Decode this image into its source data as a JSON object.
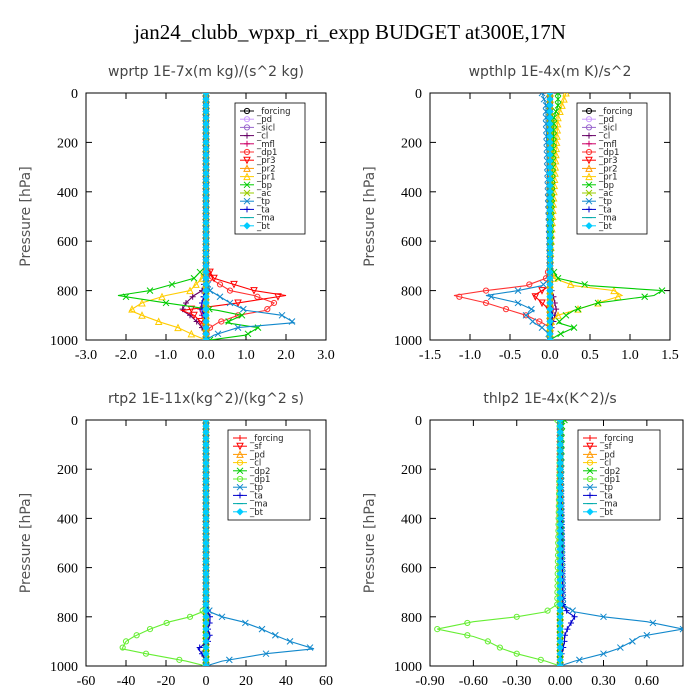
{
  "title": "jan24_clubb_wpxp_ri_expp  BUDGET at300E,17N",
  "chart_data": [
    {
      "type": "line",
      "title": "wprtp  1E-7x(m kg)/(s^2 kg)",
      "ylabel": "Pressure [hPa]",
      "xlim": [
        -3.0,
        3.0
      ],
      "ylim": [
        1000,
        0
      ],
      "xticks": [
        "-3.0",
        "-2.0",
        "-1.0",
        "0.0",
        "1.0",
        "2.0",
        "3.0"
      ],
      "xtick_values": [
        -3,
        -2,
        -1,
        0,
        1,
        2,
        3
      ],
      "yticks": [
        0,
        200,
        400,
        600,
        800,
        1000
      ],
      "legend_position": "top-right",
      "y": [
        700,
        750,
        800,
        820,
        850,
        880,
        900,
        930,
        950,
        980,
        1000
      ],
      "series": [
        {
          "name": "_forcing",
          "color": "#000000",
          "marker": "o",
          "values": [
            0,
            0,
            0,
            0,
            0,
            0,
            0,
            0,
            0,
            0,
            0
          ]
        },
        {
          "name": "_pd",
          "color": "#cc99ff",
          "marker": "o",
          "values": [
            0,
            0,
            0,
            0,
            0,
            0,
            0,
            0,
            0,
            0,
            0
          ]
        },
        {
          "name": "_sicl",
          "color": "#9966cc",
          "marker": "o",
          "values": [
            0,
            0,
            0,
            0,
            0,
            0,
            0,
            0,
            0,
            0,
            0
          ]
        },
        {
          "name": "_cl",
          "color": "#660066",
          "marker": "+",
          "values": [
            0,
            0,
            -0.1,
            -0.3,
            -0.5,
            -0.6,
            -0.4,
            -0.2,
            -0.1,
            0,
            0
          ]
        },
        {
          "name": "_mfl",
          "color": "#cc0066",
          "marker": "+",
          "values": [
            0,
            0,
            0,
            -0.05,
            -0.1,
            -0.15,
            -0.1,
            -0.05,
            0,
            0,
            0
          ]
        },
        {
          "name": "_dp1",
          "color": "#ff3333",
          "marker": "o",
          "values": [
            0,
            0.1,
            0.6,
            1.2,
            1.7,
            1.5,
            0.8,
            0.3,
            0.1,
            0,
            0
          ]
        },
        {
          "name": "_pr3",
          "color": "#ff0000",
          "marker": "v",
          "values": [
            0,
            0.2,
            1.2,
            2.0,
            0.8,
            -0.6,
            -0.3,
            -0.1,
            0,
            0,
            0
          ]
        },
        {
          "name": "_pr2",
          "color": "#ff9900",
          "marker": "^",
          "values": [
            0,
            0,
            0,
            0,
            0,
            0,
            0,
            0,
            0,
            0,
            0
          ]
        },
        {
          "name": "_pr1",
          "color": "#ffcc00",
          "marker": "^",
          "values": [
            0,
            -0.1,
            -0.4,
            -1.0,
            -1.6,
            -1.9,
            -1.6,
            -1.1,
            -0.7,
            -0.3,
            0
          ]
        },
        {
          "name": "_bp",
          "color": "#00cc00",
          "marker": "x",
          "values": [
            0,
            -0.3,
            -1.4,
            -2.2,
            -1.0,
            0.3,
            0.9,
            0.5,
            1.3,
            1.0,
            0.1
          ]
        },
        {
          "name": "_ac",
          "color": "#99cc00",
          "marker": "x",
          "values": [
            0,
            0,
            0,
            0,
            0,
            0,
            0,
            0,
            0,
            0,
            0
          ]
        },
        {
          "name": "_tp",
          "color": "#1188cc",
          "marker": "x",
          "values": [
            0,
            0,
            0.1,
            0.3,
            0.6,
            1.0,
            1.9,
            2.2,
            0.8,
            0.2,
            0
          ]
        },
        {
          "name": "_ta",
          "color": "#0000cc",
          "marker": "+",
          "values": [
            0,
            0,
            0,
            -0.05,
            -0.1,
            -0.1,
            -0.05,
            0,
            0,
            0,
            0
          ]
        },
        {
          "name": "_ma",
          "color": "#00aaaa",
          "marker": "-",
          "values": [
            0,
            0,
            0,
            0,
            0,
            0,
            0,
            0,
            0,
            0,
            0
          ]
        },
        {
          "name": "_bt",
          "color": "#00ccff",
          "marker": "D",
          "values": [
            0,
            0,
            0,
            0,
            0,
            0,
            0,
            0,
            0,
            0,
            0
          ]
        }
      ]
    },
    {
      "type": "line",
      "title": "wpthlp  1E-4x(m K)/s^2",
      "ylabel": "Pressure [hPa]",
      "xlim": [
        -1.5,
        1.5
      ],
      "ylim": [
        1000,
        0
      ],
      "xticks": [
        "-1.5",
        "-1.0",
        "-0.5",
        "0.0",
        "0.5",
        "1.0",
        "1.5"
      ],
      "xtick_values": [
        -1.5,
        -1,
        -0.5,
        0,
        0.5,
        1,
        1.5
      ],
      "yticks": [
        0,
        200,
        400,
        600,
        800,
        1000
      ],
      "legend_position": "top-right",
      "y": [
        0,
        50,
        100,
        700,
        750,
        780,
        800,
        820,
        850,
        880,
        900,
        930,
        950,
        980,
        1000
      ],
      "series": [
        {
          "name": "_forcing",
          "color": "#000000",
          "marker": "o",
          "values": [
            0,
            0,
            0,
            0,
            0,
            0,
            0,
            0,
            0,
            0,
            0,
            0,
            0,
            0,
            0
          ]
        },
        {
          "name": "_pd",
          "color": "#cc99ff",
          "marker": "o",
          "values": [
            0,
            0,
            0,
            0,
            0,
            0,
            0,
            0,
            0,
            0,
            0,
            0,
            0,
            0,
            0
          ]
        },
        {
          "name": "_sicl",
          "color": "#9966cc",
          "marker": "o",
          "values": [
            0,
            0,
            0,
            0,
            0,
            0,
            0,
            0,
            0,
            0,
            0,
            0,
            0,
            0,
            0
          ]
        },
        {
          "name": "_cl",
          "color": "#660066",
          "marker": "+",
          "values": [
            0,
            0,
            0,
            0,
            0,
            0,
            0.02,
            0.04,
            0.06,
            0.08,
            0.06,
            0.04,
            0.02,
            0,
            0
          ]
        },
        {
          "name": "_mfl",
          "color": "#cc0066",
          "marker": "+",
          "values": [
            0,
            0,
            0,
            0,
            0,
            0,
            0,
            0.02,
            0.03,
            0.04,
            0.03,
            0.02,
            0,
            0,
            0
          ]
        },
        {
          "name": "_dp1",
          "color": "#ff3333",
          "marker": "o",
          "values": [
            0,
            0,
            0,
            0,
            -0.05,
            -0.3,
            -0.8,
            -1.2,
            -0.8,
            -0.5,
            -0.3,
            -0.1,
            0,
            0,
            0
          ]
        },
        {
          "name": "_pr3",
          "color": "#ff0000",
          "marker": "v",
          "values": [
            0,
            0,
            0,
            0,
            0,
            0,
            -0.1,
            -0.2,
            -0.1,
            0,
            0,
            0,
            0,
            0,
            0
          ]
        },
        {
          "name": "_pr2",
          "color": "#ff9900",
          "marker": "^",
          "values": [
            0,
            0,
            0,
            0,
            0,
            0,
            0,
            0,
            0,
            0,
            0,
            0,
            0,
            0,
            0
          ]
        },
        {
          "name": "_pr1",
          "color": "#ffcc00",
          "marker": "^",
          "values": [
            0.2,
            0.15,
            0.1,
            0,
            0.05,
            0.3,
            0.8,
            0.9,
            0.6,
            0.3,
            0.1,
            0,
            0,
            0,
            0
          ]
        },
        {
          "name": "_bp",
          "color": "#00cc00",
          "marker": "x",
          "values": [
            0.1,
            0.1,
            0.05,
            0,
            0.1,
            0.5,
            1.4,
            1.3,
            0.6,
            0.3,
            0.2,
            0.1,
            0.3,
            0.1,
            0
          ]
        },
        {
          "name": "_ac",
          "color": "#99cc00",
          "marker": "x",
          "values": [
            0,
            0,
            0,
            0,
            0,
            0,
            0,
            0,
            0,
            0,
            0,
            0,
            0,
            0,
            0
          ]
        },
        {
          "name": "_tp",
          "color": "#1188cc",
          "marker": "x",
          "values": [
            -0.1,
            -0.05,
            -0.05,
            0,
            0,
            -0.1,
            -0.4,
            -0.8,
            -0.4,
            -0.2,
            -0.3,
            -0.2,
            -0.1,
            0,
            0
          ]
        },
        {
          "name": "_ta",
          "color": "#0000cc",
          "marker": "+",
          "values": [
            0,
            0,
            0,
            0,
            0,
            0,
            0,
            0,
            0,
            0.02,
            0.03,
            0.02,
            0.01,
            0,
            0
          ]
        },
        {
          "name": "_ma",
          "color": "#00aaaa",
          "marker": "-",
          "values": [
            0,
            0,
            0,
            0,
            0,
            0,
            0,
            0,
            0,
            0,
            0,
            0,
            0,
            0,
            0
          ]
        },
        {
          "name": "_bt",
          "color": "#00ccff",
          "marker": "D",
          "values": [
            0,
            0,
            0,
            0,
            0,
            0,
            0,
            0,
            0,
            0,
            0,
            0,
            0,
            0,
            0
          ]
        }
      ]
    },
    {
      "type": "line",
      "title": "rtp2  1E-11x(kg^2)/(kg^2 s)",
      "ylabel": "Pressure [hPa]",
      "xlim": [
        -60,
        60
      ],
      "ylim": [
        1000,
        0
      ],
      "xticks": [
        "-60",
        "-40",
        "-20",
        "0",
        "20",
        "40",
        "60"
      ],
      "xtick_values": [
        -60,
        -40,
        -20,
        0,
        20,
        40,
        60
      ],
      "yticks": [
        0,
        200,
        400,
        600,
        800,
        1000
      ],
      "legend_position": "top-right",
      "y": [
        750,
        780,
        800,
        820,
        850,
        880,
        900,
        930,
        950,
        980,
        1000
      ],
      "series": [
        {
          "name": "_forcing",
          "color": "#ff0000",
          "marker": "+",
          "values": [
            0,
            0,
            0,
            0,
            0,
            0,
            0,
            0,
            0,
            0,
            0
          ]
        },
        {
          "name": "_sf",
          "color": "#ff0000",
          "marker": "v",
          "values": [
            0,
            0,
            0,
            0,
            0,
            0,
            0,
            0,
            0,
            0,
            0
          ]
        },
        {
          "name": "_pd",
          "color": "#ff9900",
          "marker": "^",
          "values": [
            0,
            0,
            0,
            0,
            0,
            0,
            0,
            0,
            0,
            0,
            0
          ]
        },
        {
          "name": "_cl",
          "color": "#ffcc00",
          "marker": "o",
          "values": [
            0,
            0,
            0,
            0,
            0,
            0,
            0,
            0,
            0,
            0,
            0
          ]
        },
        {
          "name": "_dp2",
          "color": "#00cc00",
          "marker": "x",
          "values": [
            0,
            0,
            0,
            0,
            0,
            0,
            0,
            0,
            0,
            0,
            0
          ]
        },
        {
          "name": "_dp1",
          "color": "#66ee33",
          "marker": "o",
          "values": [
            0,
            -2,
            -8,
            -18,
            -28,
            -36,
            -40,
            -42,
            -30,
            -10,
            0
          ]
        },
        {
          "name": "_tp",
          "color": "#1188cc",
          "marker": "x",
          "values": [
            0,
            2,
            8,
            18,
            28,
            36,
            42,
            54,
            30,
            8,
            0
          ]
        },
        {
          "name": "_ta",
          "color": "#0000cc",
          "marker": "+",
          "values": [
            0,
            1,
            2,
            2,
            1,
            2,
            1,
            -4,
            -2,
            0,
            0
          ]
        },
        {
          "name": "_ma",
          "color": "#00aaaa",
          "marker": "-",
          "values": [
            0,
            0,
            0,
            0,
            0,
            0,
            0,
            0,
            0,
            0,
            0
          ]
        },
        {
          "name": "_bt",
          "color": "#00ccff",
          "marker": "D",
          "values": [
            0,
            0,
            0,
            0,
            0,
            0,
            0,
            0,
            0,
            0,
            0
          ]
        }
      ]
    },
    {
      "type": "line",
      "title": "thlp2  1E-4x(K^2)/s",
      "ylabel": "Pressure [hPa]",
      "xlim": [
        -0.9,
        0.85
      ],
      "ylim": [
        1000,
        0
      ],
      "xticks": [
        "-0.90",
        "-0.60",
        "-0.30",
        "0.00",
        "0.30",
        "0.60"
      ],
      "xtick_values": [
        -0.9,
        -0.6,
        -0.3,
        0,
        0.3,
        0.6
      ],
      "yticks": [
        0,
        200,
        400,
        600,
        800,
        1000
      ],
      "legend_position": "top-right",
      "y": [
        0,
        30,
        750,
        780,
        800,
        820,
        850,
        880,
        900,
        930,
        950,
        980,
        1000
      ],
      "series": [
        {
          "name": "_forcing",
          "color": "#ff0000",
          "marker": "+",
          "values": [
            0,
            0,
            0,
            0,
            0,
            0,
            0,
            0,
            0,
            0,
            0,
            0,
            0
          ]
        },
        {
          "name": "_sf",
          "color": "#ff0000",
          "marker": "v",
          "values": [
            0,
            0,
            0,
            0,
            0,
            0,
            0,
            0,
            0,
            0,
            0,
            0,
            0
          ]
        },
        {
          "name": "_pd",
          "color": "#ff9900",
          "marker": "^",
          "values": [
            0,
            0,
            0,
            0,
            0,
            0,
            0,
            0,
            0,
            0,
            0,
            0,
            0
          ]
        },
        {
          "name": "_cl",
          "color": "#ffcc00",
          "marker": "o",
          "values": [
            0,
            0,
            0,
            0,
            0,
            0,
            0,
            0,
            0,
            0,
            0,
            0,
            0
          ]
        },
        {
          "name": "_dp2",
          "color": "#00cc00",
          "marker": "x",
          "values": [
            0.03,
            0.01,
            0,
            0,
            0,
            0,
            0,
            0,
            0,
            0,
            0,
            0,
            0
          ]
        },
        {
          "name": "_dp1",
          "color": "#66ee33",
          "marker": "o",
          "values": [
            -0.02,
            0,
            -0.02,
            -0.1,
            -0.3,
            -0.6,
            -0.85,
            -0.6,
            -0.5,
            -0.4,
            -0.3,
            -0.1,
            0
          ]
        },
        {
          "name": "_tp",
          "color": "#1188cc",
          "marker": "x",
          "values": [
            0,
            0,
            0.02,
            0.1,
            0.3,
            0.6,
            0.85,
            0.55,
            0.5,
            0.4,
            0.3,
            0.1,
            0
          ]
        },
        {
          "name": "_ta",
          "color": "#0000cc",
          "marker": "+",
          "values": [
            0,
            0,
            0.02,
            0.05,
            0.1,
            0.08,
            0.05,
            0.03,
            0.03,
            0.02,
            0.01,
            0,
            0
          ]
        },
        {
          "name": "_ma",
          "color": "#00aaaa",
          "marker": "-",
          "values": [
            0,
            0,
            0,
            0,
            0,
            0,
            0,
            0,
            0,
            0,
            0,
            0,
            0
          ]
        },
        {
          "name": "_bt",
          "color": "#00ccff",
          "marker": "D",
          "values": [
            0,
            0,
            0,
            0,
            0,
            0,
            0,
            0,
            0,
            0,
            0,
            0,
            0
          ]
        }
      ]
    }
  ]
}
